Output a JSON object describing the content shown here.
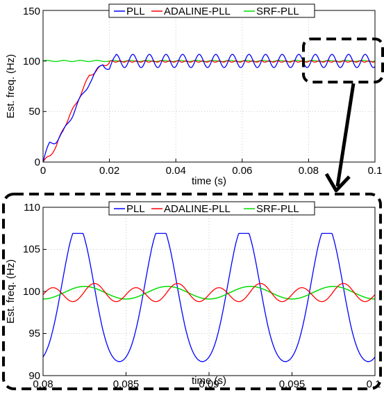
{
  "chart_data": [
    {
      "type": "line",
      "xlabel": "time (s)",
      "ylabel": "Est. freq. (Hz)",
      "xlim": [
        0,
        0.1
      ],
      "ylim": [
        0,
        150
      ],
      "xticks": [
        0,
        0.02,
        0.04,
        0.06,
        0.08,
        0.1
      ],
      "xtick_labels": [
        "0",
        "0.02",
        "0.04",
        "0.06",
        "0.08",
        "0.1"
      ],
      "yticks": [
        0,
        50,
        100,
        150
      ],
      "ytick_labels": [
        "0",
        "50",
        "100",
        "150"
      ],
      "grid": true,
      "legend": "top",
      "series": [
        {
          "name": "PLL",
          "color": "#0000ff",
          "x": [
            0,
            0.002,
            0.004,
            0.006,
            0.008,
            0.01,
            0.012,
            0.014,
            0.016,
            0.018,
            0.02,
            0.022,
            0.025,
            0.03
          ],
          "y": [
            0,
            18,
            22,
            28,
            42,
            55,
            66,
            80,
            88,
            98,
            92,
            104,
            100,
            100
          ]
        },
        {
          "name": "ADALINE-PLL",
          "color": "#ff0000",
          "x": [
            0,
            0.002,
            0.004,
            0.006,
            0.008,
            0.01,
            0.012,
            0.014,
            0.016,
            0.018,
            0.02,
            0.025,
            0.03
          ],
          "y": [
            0,
            6,
            16,
            32,
            46,
            58,
            72,
            86,
            90,
            96,
            98,
            99,
            100
          ]
        },
        {
          "name": "SRF-PLL",
          "color": "#00dd00",
          "x": [
            0,
            0.1
          ],
          "y": [
            100,
            100
          ]
        }
      ]
    },
    {
      "type": "line",
      "xlabel": "time (s)",
      "ylabel": "Est. freq. (Hz)",
      "xlim": [
        0.08,
        0.1
      ],
      "ylim": [
        90,
        110
      ],
      "xticks": [
        0.08,
        0.085,
        0.09,
        0.095,
        0.1
      ],
      "xtick_labels": [
        "0.08",
        "0.085",
        "0.09",
        "0.095",
        "0.1"
      ],
      "yticks": [
        90,
        95,
        100,
        105,
        110
      ],
      "ytick_labels": [
        "90",
        "95",
        "100",
        "105",
        "110"
      ],
      "grid": true,
      "legend": "top",
      "series": [
        {
          "name": "PLL",
          "color": "#0000ff",
          "x": [
            0.08,
            0.0821,
            0.0846,
            0.0871,
            0.0896,
            0.0921,
            0.0946,
            0.0971,
            0.0996
          ],
          "y": [
            90.5,
            106.8,
            90.7,
            106.8,
            90.7,
            106.8,
            90.7,
            106.8,
            90.7
          ]
        },
        {
          "name": "ADALINE-PLL",
          "color": "#ff0000",
          "x": [
            0.08,
            0.0806,
            0.0818,
            0.0831,
            0.0843
          ],
          "y": [
            98.8,
            100.8,
            99.6,
            100.9,
            98.5
          ]
        },
        {
          "name": "SRF-PLL",
          "color": "#00dd00",
          "x": [
            0.08,
            0.0825,
            0.085
          ],
          "y": [
            99.1,
            100.6,
            99.4
          ]
        }
      ]
    }
  ]
}
